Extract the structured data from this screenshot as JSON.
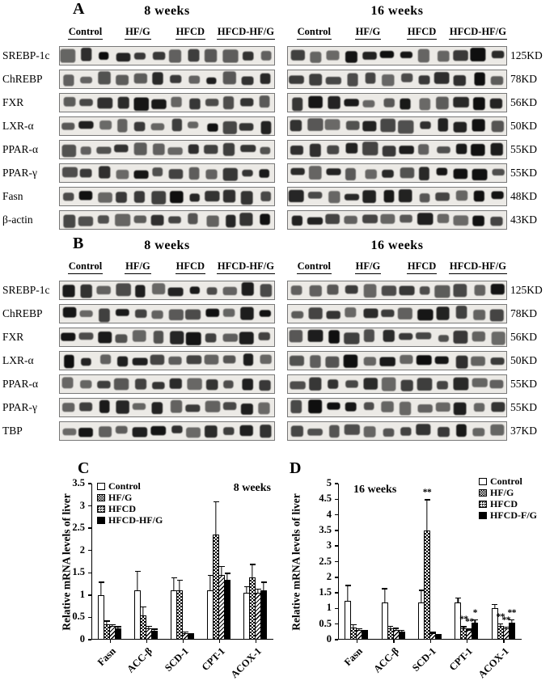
{
  "figure": {
    "panels": {
      "A": {
        "label": "A",
        "left_header": "8 weeks",
        "right_header": "16 weeks",
        "groups": [
          "Control",
          "HF/G",
          "HFCD",
          "HFCD-HF/G"
        ],
        "lanes_per_group": 3,
        "rows": [
          {
            "protein": "SREBP-1c",
            "mw": "125KD"
          },
          {
            "protein": "ChREBP",
            "mw": "78KD"
          },
          {
            "protein": "FXR",
            "mw": "56KD"
          },
          {
            "protein": "LXR-α",
            "mw": "50KD"
          },
          {
            "protein": "PPAR-α",
            "mw": "55KD"
          },
          {
            "protein": "PPAR-γ",
            "mw": "55KD"
          },
          {
            "protein": "Fasn",
            "mw": "48KD"
          },
          {
            "protein": "β-actin",
            "mw": "43KD"
          }
        ]
      },
      "B": {
        "label": "B",
        "left_header": "8 weeks",
        "right_header": "16 weeks",
        "groups": [
          "Control",
          "HF/G",
          "HFCD",
          "HFCD-HF/G"
        ],
        "lanes_per_group": 3,
        "rows": [
          {
            "protein": "SREBP-1c",
            "mw": "125KD"
          },
          {
            "protein": "ChREBP",
            "mw": "78KD"
          },
          {
            "protein": "FXR",
            "mw": "56KD"
          },
          {
            "protein": "LXR-α",
            "mw": "50KD"
          },
          {
            "protein": "PPAR-α",
            "mw": "55KD"
          },
          {
            "protein": "PPAR-γ",
            "mw": "55KD"
          },
          {
            "protein": "TBP",
            "mw": "37KD"
          }
        ]
      },
      "C": {
        "label": "C"
      },
      "D": {
        "label": "D"
      }
    }
  },
  "chart_data": [
    {
      "type": "bar",
      "panel": "C",
      "title": "8 weeks",
      "ylabel": "Relative mRNA levels of liver",
      "ylim": [
        0,
        3.5
      ],
      "ytick_step": 0.5,
      "grid": false,
      "legend_position": "top-left",
      "categories": [
        "Fasn",
        "ACC-β",
        "SCD-1",
        "CPT-1",
        "ACOX-1"
      ],
      "series": [
        {
          "name": "Control",
          "values": [
            1.0,
            1.1,
            1.1,
            1.1,
            1.05
          ],
          "errors": [
            0.3,
            0.45,
            0.3,
            0.35,
            0.15
          ]
        },
        {
          "name": "HF/G",
          "values": [
            0.35,
            0.55,
            1.1,
            2.35,
            1.4
          ],
          "errors": [
            0.08,
            0.2,
            0.25,
            0.75,
            0.3
          ]
        },
        {
          "name": "HFCD",
          "values": [
            0.3,
            0.25,
            0.15,
            1.45,
            1.05
          ],
          "errors": [
            0.05,
            0.06,
            0.04,
            0.2,
            0.1
          ]
        },
        {
          "name": "HFCD-HF/G",
          "values": [
            0.25,
            0.2,
            0.12,
            1.35,
            1.1
          ],
          "errors": [
            0.05,
            0.05,
            0.03,
            0.15,
            0.2
          ]
        }
      ],
      "annotations": []
    },
    {
      "type": "bar",
      "panel": "D",
      "title": "16 weeks",
      "ylabel": "Relative mRNA levels of liver",
      "ylim": [
        0,
        5
      ],
      "ytick_step": 0.5,
      "grid": false,
      "legend_position": "top-right",
      "categories": [
        "Fasn",
        "ACC-β",
        "SCD-1",
        "CPT-1",
        "ACOX-1"
      ],
      "series": [
        {
          "name": "Control",
          "values": [
            1.25,
            1.2,
            1.2,
            1.2,
            1.0
          ],
          "errors": [
            0.5,
            0.45,
            0.4,
            0.15,
            0.15
          ]
        },
        {
          "name": "HF/G",
          "values": [
            0.4,
            0.35,
            3.5,
            0.35,
            0.45
          ],
          "errors": [
            0.1,
            0.1,
            1.0,
            0.08,
            0.08
          ]
        },
        {
          "name": "HFCD",
          "values": [
            0.3,
            0.3,
            0.2,
            0.3,
            0.35
          ],
          "errors": [
            0.06,
            0.08,
            0.05,
            0.05,
            0.06
          ]
        },
        {
          "name": "HFCD-F/G",
          "values": [
            0.25,
            0.25,
            0.15,
            0.55,
            0.55
          ],
          "errors": [
            0.05,
            0.06,
            0.04,
            0.1,
            0.1
          ]
        }
      ],
      "annotations": [
        {
          "category": "SCD-1",
          "series": 1,
          "text": "**"
        },
        {
          "category": "CPT-1",
          "series": 1,
          "text": "**"
        },
        {
          "category": "CPT-1",
          "series": 2,
          "text": "**"
        },
        {
          "category": "CPT-1",
          "series": 3,
          "text": "*"
        },
        {
          "category": "ACOX-1",
          "series": 1,
          "text": "**"
        },
        {
          "category": "ACOX-1",
          "series": 2,
          "text": "**"
        },
        {
          "category": "ACOX-1",
          "series": 3,
          "text": "**"
        }
      ]
    }
  ]
}
